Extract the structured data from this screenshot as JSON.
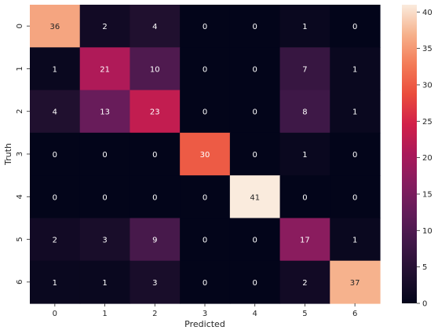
{
  "chart_data": {
    "type": "heatmap",
    "title": "",
    "xlabel": "Predicted",
    "ylabel": "Truth",
    "x_categories": [
      "0",
      "1",
      "2",
      "3",
      "4",
      "5",
      "6"
    ],
    "y_categories": [
      "0",
      "1",
      "2",
      "3",
      "4",
      "5",
      "6"
    ],
    "values": [
      [
        36,
        2,
        4,
        0,
        0,
        1,
        0
      ],
      [
        1,
        21,
        10,
        0,
        0,
        7,
        1
      ],
      [
        4,
        13,
        23,
        0,
        0,
        8,
        1
      ],
      [
        0,
        0,
        0,
        30,
        0,
        1,
        0
      ],
      [
        0,
        0,
        0,
        0,
        41,
        0,
        0
      ],
      [
        2,
        3,
        9,
        0,
        0,
        17,
        1
      ],
      [
        1,
        1,
        3,
        0,
        0,
        2,
        37
      ]
    ],
    "colorbar": {
      "vmin": 0,
      "vmax": 41,
      "ticks": [
        0,
        5,
        10,
        15,
        20,
        25,
        30,
        35,
        40
      ],
      "colormap": "rocket"
    },
    "annotations": true,
    "grid": false
  }
}
